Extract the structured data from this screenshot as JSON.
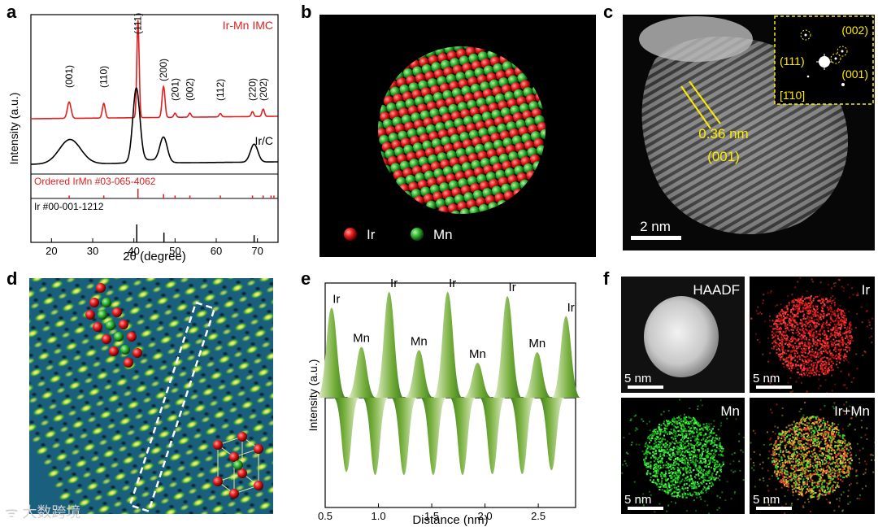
{
  "labels": {
    "a": "a",
    "b": "b",
    "c": "c",
    "d": "d",
    "e": "e",
    "f": "f"
  },
  "panel_a": {
    "chart_data": {
      "type": "line",
      "xlabel": "2θ (degree)",
      "ylabel": "Intensity (a.u.)",
      "xlim": [
        15,
        75
      ],
      "xticks": [
        20,
        30,
        40,
        50,
        60,
        70
      ],
      "series": [
        {
          "name": "Ir-Mn IMC",
          "color": "#e02020"
        },
        {
          "name": "Ir/C",
          "color": "#000000"
        }
      ],
      "peak_labels": [
        {
          "text": "(001)",
          "x": 24.3
        },
        {
          "text": "(110)",
          "x": 32.7
        },
        {
          "text": "(111)",
          "x": 41.0
        },
        {
          "text": "(200)",
          "x": 47.2
        },
        {
          "text": "(201)",
          "x": 50.0
        },
        {
          "text": "(002)",
          "x": 53.6
        },
        {
          "text": "(112)",
          "x": 61.0
        },
        {
          "text": "(220)",
          "x": 68.8
        },
        {
          "text": "(202)",
          "x": 71.4
        }
      ],
      "reference_irmn": {
        "label": "Ordered IrMn #03-065-4062",
        "x": [
          24.3,
          32.7,
          41.0,
          47.2,
          50.0,
          53.6,
          61.0,
          68.8,
          71.4,
          73.3,
          74.0
        ],
        "h": [
          0.3,
          0.3,
          1,
          0.45,
          0.3,
          0.3,
          0.3,
          0.3,
          0.3,
          0.3,
          0.3
        ]
      },
      "reference_ir": {
        "label": "Ir #00-001-1212",
        "x": [
          40.7,
          47.3,
          69.2
        ],
        "h": [
          1,
          0.55,
          0.4
        ]
      }
    }
  },
  "panel_b": {
    "legend": [
      {
        "label": "Ir",
        "color": "#e02020"
      },
      {
        "label": "Mn",
        "color": "#2ca02c"
      }
    ]
  },
  "panel_c": {
    "spacing": "0.36 nm",
    "plane": "(001)",
    "scalebar": "2 nm",
    "fft": {
      "l1": "(002)",
      "l2": "(111)",
      "l3": "(001)",
      "zone": "[1̄10]"
    }
  },
  "panel_e": {
    "chart_data": {
      "type": "area",
      "xlabel": "Distance (nm)",
      "ylabel": "Intensity (a.u.)",
      "xlim": [
        0.5,
        2.85
      ],
      "xticks": [
        0.5,
        1.0,
        1.5,
        2.0,
        2.5
      ],
      "peaks": [
        {
          "atom": "Ir",
          "x": 0.56,
          "h": 0.85
        },
        {
          "atom": "Mn",
          "x": 0.84,
          "h": 0.48
        },
        {
          "atom": "Ir",
          "x": 1.1,
          "h": 1.0
        },
        {
          "atom": "Mn",
          "x": 1.38,
          "h": 0.45
        },
        {
          "atom": "Ir",
          "x": 1.65,
          "h": 1.0
        },
        {
          "atom": "Mn",
          "x": 1.93,
          "h": 0.33
        },
        {
          "atom": "Ir",
          "x": 2.21,
          "h": 0.96
        },
        {
          "atom": "Mn",
          "x": 2.49,
          "h": 0.43
        },
        {
          "atom": "Ir",
          "x": 2.76,
          "h": 0.77
        }
      ]
    }
  },
  "panel_f": {
    "haadf": "HAADF",
    "ir": "Ir",
    "mn": "Mn",
    "irmn": "Ir+Mn",
    "scalebar": "5 nm"
  },
  "watermark": "大数跨境"
}
